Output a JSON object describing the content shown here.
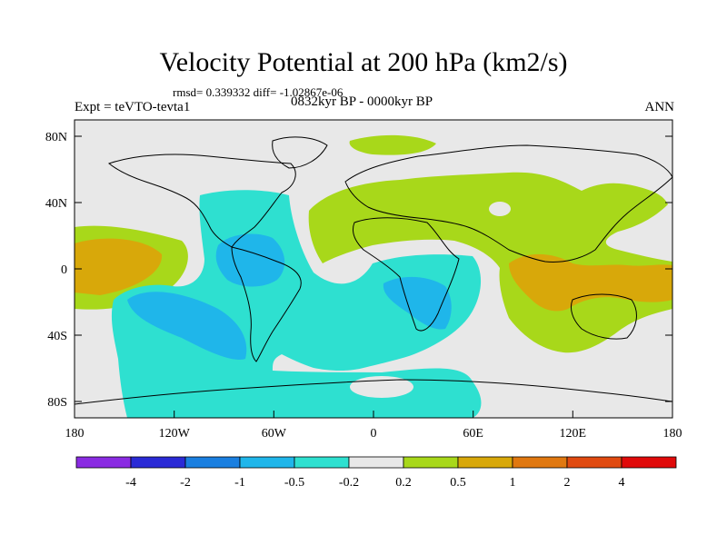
{
  "header": {
    "title": "Velocity Potential at 200 hPa (km2/s)",
    "stats": "rmsd= 0.339332 diff= -1.02867e-06",
    "experiment": "Expt = teVTO-tevta1",
    "period": "0832kyr BP - 0000kyr BP",
    "season": "ANN"
  },
  "axes": {
    "lon_ticks": [
      "180",
      "120W",
      "60W",
      "0",
      "60E",
      "120E",
      "180"
    ],
    "lat_ticks": [
      "80N",
      "40N",
      "0",
      "40S",
      "80S"
    ]
  },
  "colorbar": {
    "labels": [
      "-4",
      "-2",
      "-1",
      "-0.5",
      "-0.2",
      "0.2",
      "0.5",
      "1",
      "2",
      "4"
    ],
    "colors": [
      "#8a2be2",
      "#2a2ad6",
      "#1a7fe0",
      "#1fb6ea",
      "#2ee0d0",
      "#e8e8e8",
      "#a8d81a",
      "#d8a80a",
      "#e07810",
      "#e04a10",
      "#e00a0a"
    ]
  },
  "palette": {
    "land_outline": "#000000",
    "background_field": "#e8e8e8",
    "negative_light": "#2ee0d0",
    "negative_mid": "#1fb6ea",
    "positive_light": "#a8d81a",
    "positive_mid": "#d8a80a"
  }
}
